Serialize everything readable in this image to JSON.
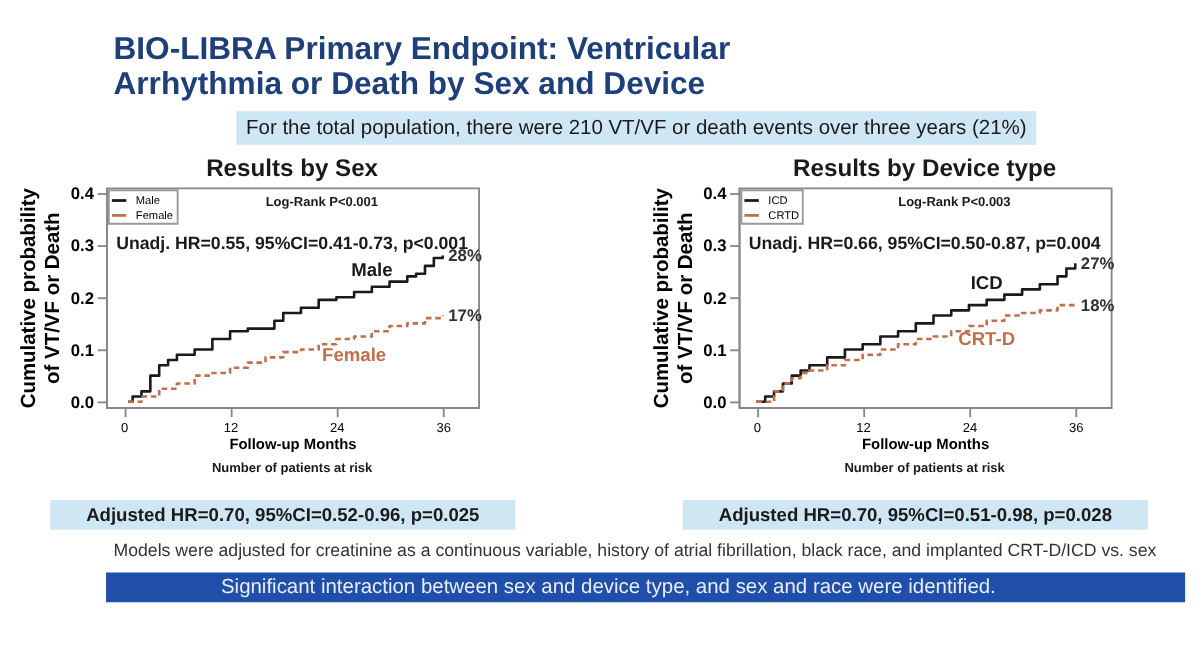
{
  "chart_data": [
    {
      "type": "other",
      "title": "BIO-LIBRA Primary Endpoint: Ventricular Arrhythmia or Death by Sex and Device",
      "subtitle": "For the total population, there were 210 VT/VF or death events over three years (21%)"
    },
    {
      "type": "step",
      "title": "Results by Sex",
      "xlabel": "Follow-up Months",
      "ylabel": "Cumulative probability of VT/VF or Death",
      "xlim": [
        -2,
        40
      ],
      "xticks": [
        0,
        12,
        24,
        36
      ],
      "ylim": [
        -0.01,
        0.41
      ],
      "yticks": [
        {
          "value": 0,
          "label": "0.0"
        },
        0.1,
        0.2,
        0.3,
        0.4
      ],
      "grid": false,
      "legend": "top left",
      "series": [
        {
          "name": "Male",
          "color": "#1a1a1a",
          "line_style": "solid",
          "x": [
            0.5,
            1,
            2,
            3,
            4,
            5,
            6,
            8,
            10,
            12,
            14,
            16,
            17,
            18,
            20,
            22,
            24,
            26,
            28,
            30,
            32,
            33,
            34,
            35,
            36
          ],
          "values": [
            0,
            0.01,
            0.02,
            0.05,
            0.07,
            0.08,
            0.09,
            0.1,
            0.12,
            0.135,
            0.14,
            0.14,
            0.155,
            0.17,
            0.18,
            0.195,
            0.2,
            0.21,
            0.22,
            0.23,
            0.24,
            0.245,
            0.26,
            0.275,
            0.28
          ]
        },
        {
          "name": "Female",
          "color": "#c0704a",
          "line_style": "dashed",
          "x": [
            0.5,
            2,
            4,
            6,
            8,
            10,
            12,
            14,
            16,
            18,
            20,
            22,
            24,
            26,
            28,
            30,
            32,
            34,
            36
          ],
          "values": [
            0,
            0.01,
            0.025,
            0.035,
            0.05,
            0.055,
            0.065,
            0.075,
            0.085,
            0.095,
            0.1,
            0.11,
            0.12,
            0.125,
            0.135,
            0.145,
            0.15,
            0.16,
            0.165
          ]
        }
      ],
      "annotations": [
        "Log-Rank P<0.001",
        "Unadj. HR=0.55, 95%CI=0.41-0.73, p<0.001",
        "Number of patients at risk",
        "Adjusted HR=0.70, 95%CI=0.52-0.96, p=0.025",
        "Male",
        "Female",
        "28%",
        "17%"
      ]
    },
    {
      "type": "step",
      "title": "Results by Device type",
      "xlabel": "Follow-up Months",
      "ylabel": "Cumulative probability of VT/VF or Death",
      "xlim": [
        -2,
        40
      ],
      "xticks": [
        0,
        12,
        24,
        36
      ],
      "ylim": [
        -0.01,
        0.41
      ],
      "yticks": [
        {
          "value": 0,
          "label": "0.0"
        },
        0.1,
        0.2,
        0.3,
        0.4
      ],
      "grid": false,
      "legend": "top left",
      "series": [
        {
          "name": "ICD",
          "color": "#1a1a1a",
          "line_style": "solid",
          "x": [
            0,
            1,
            2,
            3,
            4,
            5,
            6,
            8,
            10,
            12,
            14,
            16,
            18,
            20,
            22,
            24,
            26,
            28,
            30,
            32,
            34,
            35,
            36
          ],
          "values": [
            0,
            0.01,
            0.02,
            0.035,
            0.05,
            0.06,
            0.07,
            0.085,
            0.1,
            0.11,
            0.125,
            0.135,
            0.15,
            0.165,
            0.175,
            0.185,
            0.195,
            0.205,
            0.215,
            0.225,
            0.24,
            0.255,
            0.265
          ]
        },
        {
          "name": "CRTD",
          "color": "#c0704a",
          "line_style": "dashed",
          "x": [
            0,
            2,
            3,
            4,
            5,
            6,
            8,
            10,
            12,
            14,
            16,
            18,
            20,
            22,
            24,
            26,
            28,
            30,
            32,
            34,
            36
          ],
          "values": [
            0,
            0.02,
            0.035,
            0.045,
            0.055,
            0.06,
            0.07,
            0.08,
            0.09,
            0.1,
            0.11,
            0.12,
            0.125,
            0.135,
            0.145,
            0.155,
            0.165,
            0.17,
            0.175,
            0.185,
            0.185
          ]
        }
      ],
      "annotations": [
        "Log-Rank P<0.003",
        "Unadj. HR=0.66, 95%CI=0.50-0.87, p=0.004",
        "Number of patients at risk",
        "Adjusted HR=0.70, 95%CI=0.51-0.98, p=0.028",
        "ICD",
        "CRT-D",
        "27%",
        "18%"
      ]
    },
    {
      "type": "other",
      "annotations": [
        "Models were adjusted for creatinine as a continuous variable, history of atrial fibrillation, black race, and implanted CRT-D/ICD vs. sex",
        "Significant interaction between sex and device type, and sex and race were identified."
      ]
    }
  ]
}
